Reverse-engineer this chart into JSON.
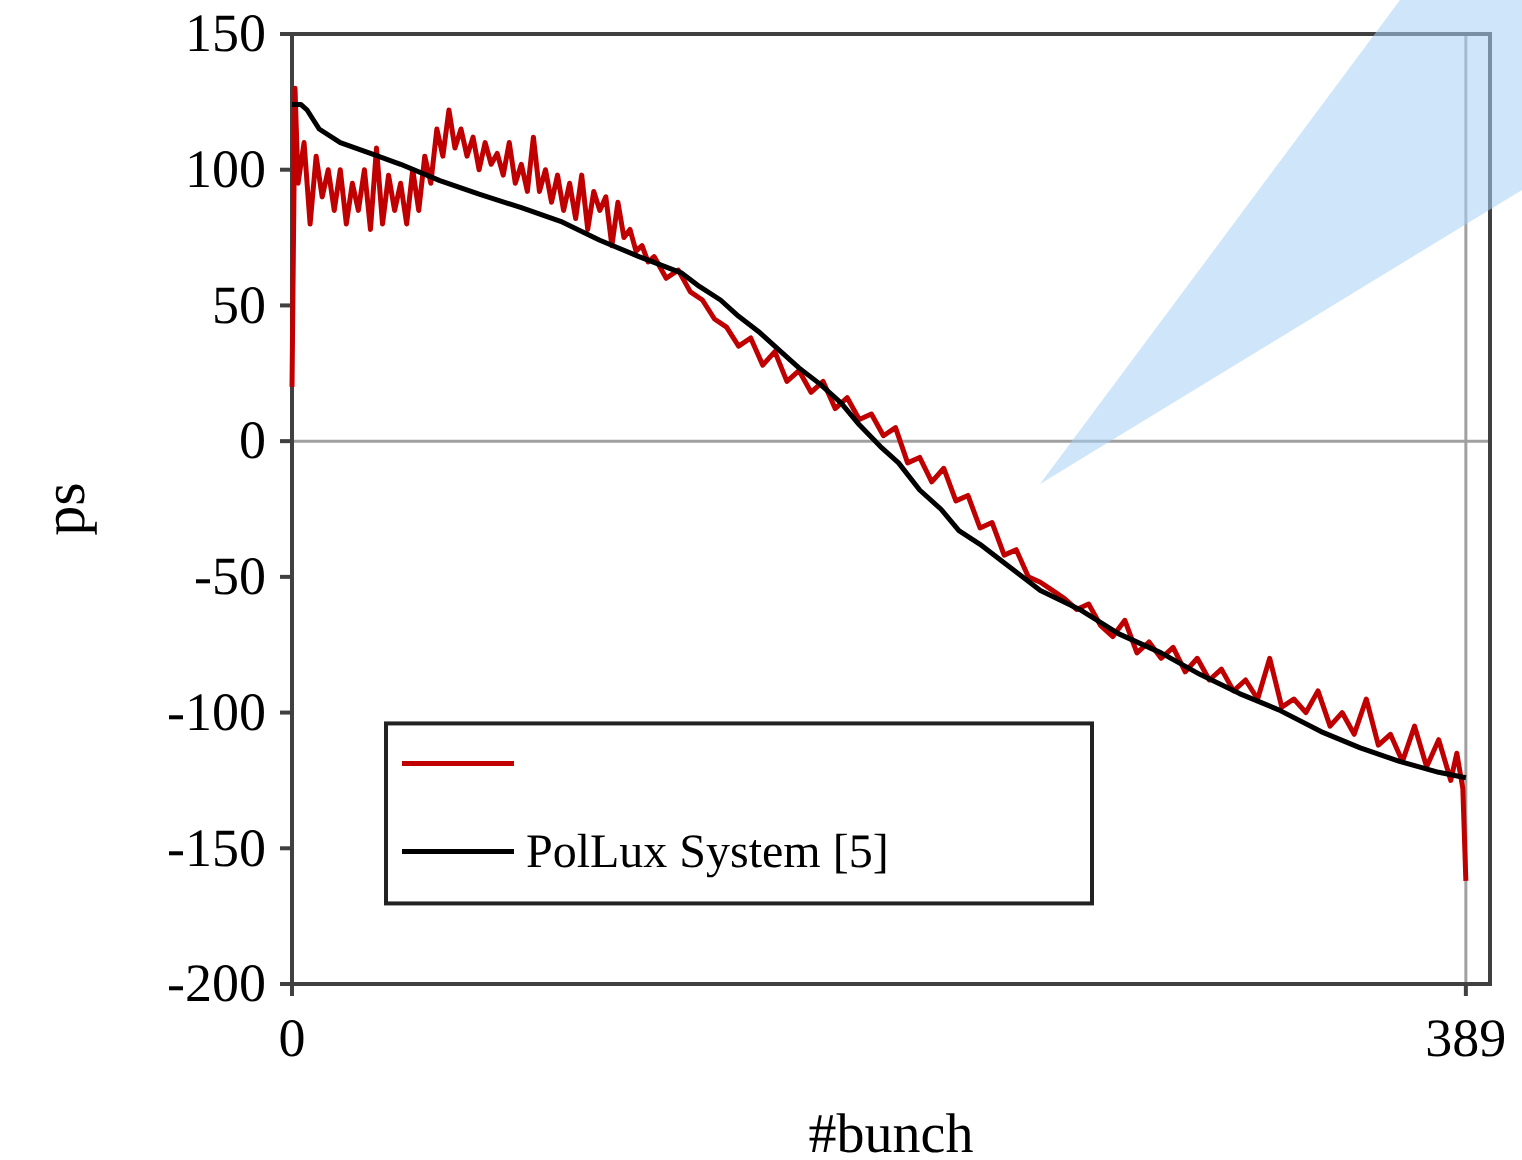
{
  "chart_data": {
    "type": "line",
    "xlabel": "#bunch",
    "ylabel": "ps",
    "xlim": [
      0,
      397
    ],
    "xticks": [
      0,
      389
    ],
    "ylim": [
      -200,
      150
    ],
    "yticks": [
      -200,
      -150,
      -100,
      -50,
      0,
      50,
      100,
      150
    ],
    "grid": false,
    "legend": "bottom left",
    "line_style": "solid",
    "marker": "none",
    "ref_lines": [
      {
        "axis": "y",
        "value": 0,
        "color": "#a0a0a0"
      },
      {
        "axis": "x",
        "value": 389,
        "color": "#a0a0a0"
      }
    ],
    "series": [
      {
        "color": "#c00000",
        "x": [
          0,
          1,
          2,
          4,
          6,
          8,
          10,
          12,
          14,
          16,
          18,
          20,
          22,
          24,
          26,
          28,
          30,
          32,
          34,
          36,
          38,
          40,
          42,
          44,
          46,
          48,
          50,
          52,
          54,
          56,
          58,
          60,
          62,
          64,
          66,
          68,
          70,
          72,
          74,
          76,
          78,
          80,
          82,
          84,
          86,
          88,
          90,
          92,
          94,
          96,
          98,
          100,
          102,
          104,
          106,
          108,
          110,
          112,
          114,
          116,
          118,
          120,
          124,
          128,
          132,
          136,
          140,
          144,
          148,
          152,
          156,
          160,
          164,
          168,
          172,
          176,
          180,
          184,
          188,
          192,
          196,
          200,
          204,
          208,
          212,
          216,
          220,
          224,
          228,
          232,
          236,
          240,
          244,
          248,
          252,
          256,
          260,
          264,
          268,
          272,
          276,
          280,
          284,
          288,
          292,
          296,
          300,
          304,
          308,
          312,
          316,
          320,
          324,
          328,
          332,
          336,
          340,
          344,
          348,
          352,
          356,
          360,
          364,
          368,
          372,
          376,
          380,
          384,
          386,
          388,
          389
        ],
        "values": [
          20,
          130,
          95,
          110,
          80,
          105,
          90,
          100,
          85,
          100,
          80,
          95,
          85,
          100,
          78,
          108,
          80,
          98,
          85,
          95,
          80,
          100,
          85,
          105,
          95,
          115,
          105,
          122,
          108,
          115,
          105,
          112,
          100,
          110,
          102,
          106,
          98,
          110,
          95,
          102,
          92,
          112,
          92,
          100,
          88,
          98,
          85,
          95,
          82,
          98,
          78,
          92,
          85,
          90,
          72,
          88,
          75,
          78,
          70,
          72,
          66,
          68,
          60,
          63,
          55,
          52,
          45,
          42,
          35,
          38,
          28,
          33,
          22,
          26,
          18,
          22,
          12,
          16,
          8,
          10,
          2,
          5,
          -8,
          -6,
          -15,
          -10,
          -22,
          -20,
          -32,
          -30,
          -42,
          -40,
          -50,
          -52,
          -55,
          -58,
          -62,
          -60,
          -68,
          -72,
          -66,
          -78,
          -74,
          -80,
          -76,
          -85,
          -80,
          -88,
          -84,
          -92,
          -88,
          -95,
          -80,
          -98,
          -95,
          -100,
          -92,
          -105,
          -100,
          -108,
          -95,
          -112,
          -108,
          -118,
          -105,
          -120,
          -110,
          -125,
          -115,
          -128,
          -162
        ]
      },
      {
        "name": "PolLux System [5]",
        "color": "#000000",
        "x": [
          0,
          3,
          5,
          9,
          16,
          26,
          36,
          49,
          62,
          76,
          89,
          102,
          115,
          129,
          135,
          142,
          148,
          155,
          162,
          168,
          175,
          182,
          188,
          195,
          201,
          208,
          215,
          221,
          228,
          235,
          248,
          261,
          274,
          288,
          301,
          314,
          327,
          341,
          354,
          367,
          380,
          389
        ],
        "values": [
          124,
          124,
          122,
          115,
          110,
          106,
          102,
          96,
          91,
          86,
          81,
          74,
          68,
          62,
          57,
          52,
          46,
          40,
          33,
          27,
          21,
          14,
          6,
          -2,
          -8,
          -18,
          -25,
          -33,
          -38,
          -44,
          -55,
          -62,
          -71,
          -78,
          -86,
          -93,
          -99,
          -107,
          -113,
          -118,
          -122,
          -124
        ]
      }
    ]
  }
}
